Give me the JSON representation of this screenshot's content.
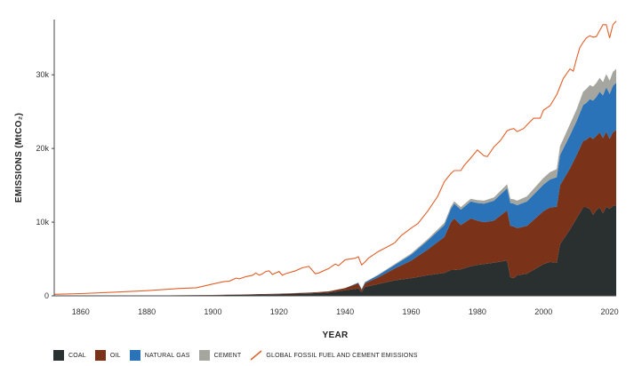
{
  "chart_data": {
    "type": "area",
    "title": "",
    "xlabel": "YEAR",
    "ylabel": "EMISSIONS (MtCO₂)",
    "xlim": [
      1852,
      2022
    ],
    "ylim": [
      0,
      37500
    ],
    "x_ticks": [
      "1860",
      "1880",
      "1900",
      "1920",
      "1940",
      "1960",
      "1980",
      "2000",
      "2020"
    ],
    "y_ticks": [
      "0",
      "10k",
      "20k",
      "30k"
    ],
    "x": [
      1852,
      1860,
      1880,
      1900,
      1910,
      1920,
      1930,
      1935,
      1940,
      1944,
      1945,
      1946,
      1950,
      1955,
      1960,
      1965,
      1970,
      1972,
      1973,
      1975,
      1978,
      1980,
      1982,
      1985,
      1989,
      1990,
      1991,
      1992,
      1995,
      2000,
      2002,
      2004,
      2005,
      2008,
      2010,
      2012,
      2013,
      2014,
      2015,
      2016,
      2017,
      2018,
      2019,
      2020,
      2021,
      2022
    ],
    "series": [
      {
        "name": "COAL",
        "color": "#2a2f30",
        "values": [
          0,
          0,
          40,
          100,
          150,
          230,
          350,
          450,
          750,
          1000,
          500,
          1200,
          1600,
          2100,
          2400,
          2800,
          3100,
          3500,
          3500,
          3600,
          4000,
          4200,
          4300,
          4500,
          4800,
          2500,
          2400,
          2800,
          3000,
          4300,
          4600,
          4500,
          7000,
          9000,
          10500,
          12000,
          12000,
          11800,
          11000,
          11600,
          12000,
          11200,
          12100,
          11800,
          12200,
          12300
        ]
      },
      {
        "name": "OIL",
        "color": "#7a3318",
        "values": [
          0,
          0,
          0,
          20,
          40,
          60,
          100,
          150,
          300,
          700,
          300,
          500,
          900,
          1600,
          2400,
          3500,
          4900,
          6500,
          7000,
          6000,
          6500,
          6000,
          5700,
          5700,
          6800,
          7000,
          7000,
          6400,
          6500,
          7200,
          7400,
          7600,
          8000,
          8300,
          8600,
          9000,
          9200,
          9800,
          10300,
          10100,
          10200,
          10200,
          10200,
          9500,
          10000,
          10200
        ]
      },
      {
        "name": "NATURAL GAS",
        "color": "#2b73b8",
        "values": [
          0,
          0,
          0,
          0,
          0,
          0,
          0,
          0,
          0,
          100,
          100,
          150,
          300,
          500,
          800,
          1200,
          1600,
          1800,
          2000,
          2100,
          2300,
          2400,
          2500,
          2700,
          3000,
          3100,
          3100,
          3100,
          3300,
          3600,
          3800,
          4000,
          4100,
          4500,
          4600,
          4900,
          5000,
          5100,
          5200,
          5300,
          5500,
          5800,
          6000,
          6100,
          6300,
          6400
        ]
      },
      {
        "name": "CEMENT",
        "color": "#a6a6a0",
        "values": [
          0,
          0,
          0,
          0,
          0,
          0,
          0,
          0,
          0,
          0,
          20,
          30,
          60,
          100,
          150,
          220,
          300,
          320,
          330,
          340,
          380,
          400,
          410,
          450,
          550,
          580,
          600,
          620,
          700,
          900,
          1000,
          1100,
          1200,
          1500,
          1600,
          1800,
          1900,
          1900,
          1900,
          1900,
          1900,
          1800,
          1800,
          1800,
          1900,
          1900
        ]
      }
    ],
    "line_series": {
      "name": "GLOBAL FOSSIL FUEL AND CEMENT EMISSIONS",
      "color": "#e2602a",
      "x": [
        1852,
        1860,
        1870,
        1880,
        1890,
        1895,
        1900,
        1903,
        1905,
        1907,
        1908,
        1910,
        1912,
        1913,
        1914,
        1915,
        1916,
        1917,
        1918,
        1920,
        1921,
        1922,
        1925,
        1927,
        1929,
        1930,
        1931,
        1932,
        1935,
        1937,
        1938,
        1940,
        1943,
        1944,
        1945,
        1946,
        1947,
        1950,
        1953,
        1955,
        1957,
        1960,
        1962,
        1965,
        1968,
        1970,
        1972,
        1973,
        1975,
        1976,
        1978,
        1980,
        1982,
        1983,
        1985,
        1987,
        1989,
        1990,
        1991,
        1992,
        1994,
        1995,
        1997,
        1999,
        2000,
        2002,
        2004,
        2005,
        2006,
        2008,
        2009,
        2010,
        2011,
        2012,
        2013,
        2014,
        2015,
        2016,
        2017,
        2018,
        2019,
        2020,
        2021,
        2022
      ],
      "values": [
        200,
        300,
        500,
        700,
        1000,
        1100,
        1600,
        1900,
        2000,
        2400,
        2300,
        2600,
        2800,
        3100,
        2800,
        3000,
        3300,
        3400,
        2900,
        3300,
        2800,
        3000,
        3400,
        3800,
        4000,
        3500,
        3000,
        3100,
        3700,
        4300,
        4100,
        4900,
        5100,
        5300,
        4200,
        4600,
        5100,
        6000,
        6700,
        7200,
        8200,
        9200,
        9800,
        11500,
        13500,
        15500,
        16600,
        17000,
        17000,
        17700,
        18700,
        19800,
        19000,
        18900,
        20200,
        21100,
        22400,
        22600,
        22700,
        22300,
        22700,
        23200,
        24100,
        24100,
        25200,
        25800,
        27300,
        28400,
        29500,
        30800,
        30500,
        32200,
        33700,
        34400,
        35000,
        35300,
        35100,
        35200,
        36000,
        36800,
        36800,
        35000,
        36800,
        37300
      ]
    }
  }
}
